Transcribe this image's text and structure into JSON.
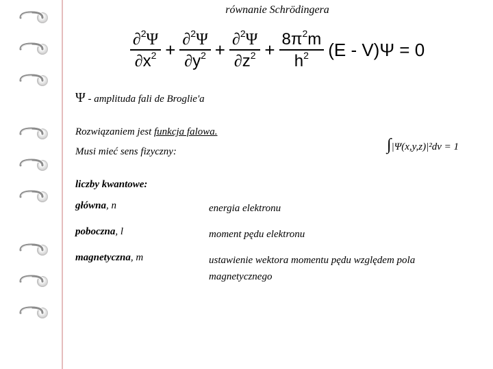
{
  "title": "równanie Schrödingera",
  "equation": {
    "num1": "∂²Ψ",
    "den1": "∂x²",
    "num2": "∂²Ψ",
    "den2": "∂y²",
    "num3": "∂²Ψ",
    "den3": "∂z²",
    "num4": "8π²m",
    "den4": "h²",
    "tail": "(E - V)Ψ = 0",
    "plus": "+"
  },
  "psi_desc": {
    "symbol": "Ψ",
    "text": " - amplituda fali de Broglie'a"
  },
  "solution": {
    "line1a": "Rozwiązaniem jest ",
    "line1b": "funkcja falowa.",
    "line2": "Musi mieć sens fizyczny:"
  },
  "integral": {
    "int": "∫",
    "body": "|Ψ(x,y,z)|²dv = 1"
  },
  "quantum": {
    "header": "liczby kwantowe:",
    "rows": [
      {
        "name_b": "główna",
        "name_i": ", n",
        "meaning": "energia elektronu"
      },
      {
        "name_b": "poboczna",
        "name_i": ", l",
        "meaning": "moment pędu elektronu"
      },
      {
        "name_b": "magnetyczna",
        "name_i": ", m",
        "meaning": "ustawienie wektora momentu pędu względem pola magnetycznego"
      }
    ]
  },
  "style": {
    "bg": "#ffffff",
    "text": "#000000",
    "red_line": "#d49090",
    "ring_metal": "#8c8c8c",
    "ring_positions": [
      16,
      62,
      108,
      186,
      232,
      278,
      356,
      402,
      448
    ]
  }
}
